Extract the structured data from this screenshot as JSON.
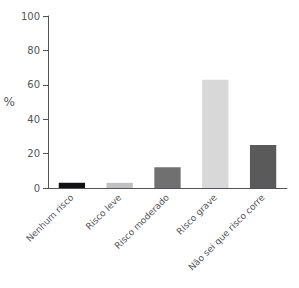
{
  "chart_data": {
    "type": "bar",
    "ylabel": "%",
    "categories": [
      "Nenhum risco",
      "Risco leve",
      "Risco moderado",
      "Risco grave",
      "Não sei que risco corre"
    ],
    "values": [
      3,
      3,
      12,
      63,
      25
    ],
    "colors": [
      "#111111",
      "#c0c0c0",
      "#707070",
      "#d8d8d8",
      "#5a5a5a"
    ],
    "ylim": [
      0,
      100
    ],
    "yticks": [
      0,
      20,
      40,
      60,
      80,
      100
    ],
    "grid": false
  }
}
